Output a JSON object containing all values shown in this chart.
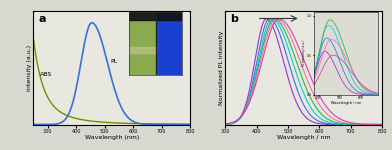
{
  "panel_a": {
    "label": "a",
    "abs_color": "#7a8c00",
    "pl_color": "#3a6fd8",
    "abs_label": "ABS",
    "pl_label": "PL",
    "xlabel": "Wavelength (nm)",
    "ylabel": "Intensity (a.u.)",
    "xlim": [
      250,
      800
    ],
    "background": "#e8e8e0"
  },
  "panel_b": {
    "label": "b",
    "xlabel": "Wavelength / nm",
    "ylabel": "Normalized PL Intensity",
    "xlim": [
      300,
      800
    ],
    "ylim": [
      0,
      1.08
    ],
    "emission_peaks": [
      430,
      440,
      448,
      455,
      462,
      470
    ],
    "peak_widths": [
      42,
      46,
      50,
      54,
      58,
      62
    ],
    "colors": [
      "#9b30d0",
      "#3a6fd8",
      "#00ced1",
      "#22bb44",
      "#ff69b4",
      "#cc44aa"
    ],
    "inset_amplitudes": [
      0.55,
      0.72,
      0.88,
      0.95,
      0.7,
      0.5
    ],
    "background": "#e8e8e0"
  },
  "background_color": "#d8d8d0"
}
